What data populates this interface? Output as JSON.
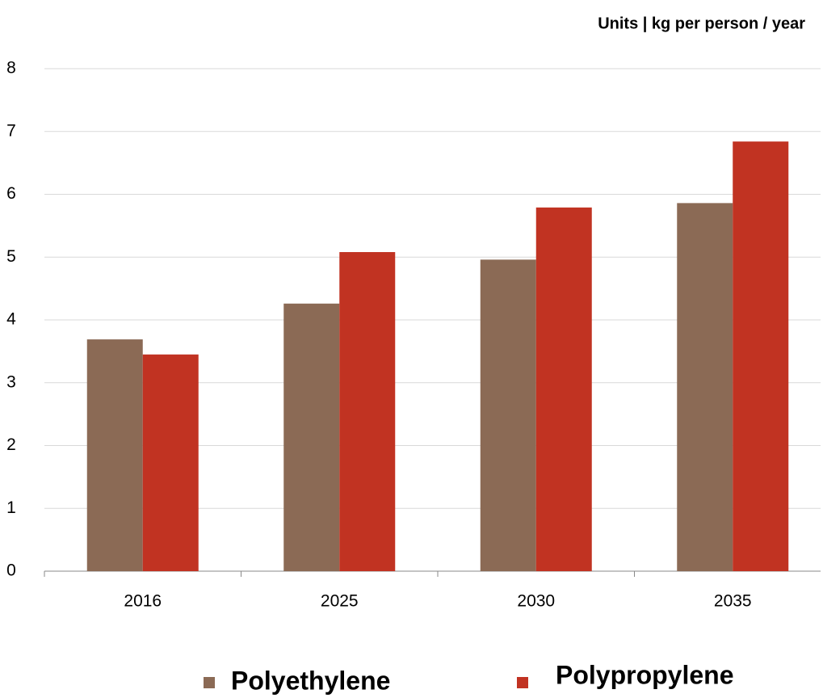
{
  "chart_data": {
    "type": "bar",
    "title": "Units | kg per person / year",
    "categories": [
      "2016",
      "2025",
      "2030",
      "2035"
    ],
    "series": [
      {
        "name": "Polyethylene",
        "color": "#8b6a55",
        "values": [
          3.69,
          4.26,
          4.96,
          5.86
        ]
      },
      {
        "name": "Polypropylene",
        "color": "#c13322",
        "values": [
          3.45,
          5.08,
          5.79,
          6.84
        ]
      }
    ],
    "ylim": [
      0,
      8
    ],
    "yticks": [
      0,
      1,
      2,
      3,
      4,
      5,
      6,
      7,
      8
    ],
    "grid": true
  }
}
